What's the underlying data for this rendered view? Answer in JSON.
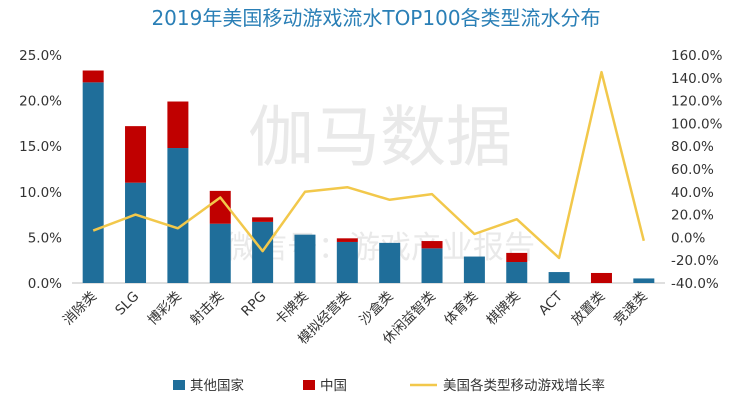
{
  "chart_data": {
    "type": "bar",
    "title": "2019年美国移动游戏流水TOP100各类型流水分布",
    "stacked": true,
    "categories": [
      "消除类",
      "SLG",
      "博彩类",
      "射击类",
      "RPG",
      "卡牌类",
      "模拟经营类",
      "沙盒类",
      "休闲益智类",
      "体育类",
      "棋牌类",
      "ACT",
      "放置类",
      "竞速类"
    ],
    "series": [
      {
        "name": "其他国家",
        "axis": "left",
        "color": "#1f6e9a",
        "values": [
          22.0,
          11.0,
          14.8,
          6.5,
          6.7,
          5.3,
          4.5,
          4.4,
          3.8,
          2.9,
          2.3,
          1.2,
          0.0,
          0.5
        ]
      },
      {
        "name": "中国",
        "axis": "left",
        "color": "#c00000",
        "values": [
          1.3,
          6.2,
          5.1,
          3.6,
          0.5,
          0.0,
          0.4,
          0.0,
          0.8,
          0.0,
          1.0,
          0.0,
          1.1,
          0.0
        ]
      },
      {
        "name": "美国各类型移动游戏增长率",
        "axis": "right",
        "type": "line",
        "color": "#f2c84b",
        "values": [
          6.0,
          20.0,
          8.0,
          35.0,
          -12.0,
          40.0,
          44.0,
          33.0,
          38.0,
          3.0,
          16.0,
          -18.0,
          145.0,
          -3.0
        ]
      }
    ],
    "y_left": {
      "ticks": [
        "0.0%",
        "5.0%",
        "10.0%",
        "15.0%",
        "20.0%",
        "25.0%"
      ],
      "ylim": [
        0,
        25
      ]
    },
    "y_right": {
      "ticks": [
        "-40.0%",
        "-20.0%",
        "0.0%",
        "20.0%",
        "40.0%",
        "60.0%",
        "80.0%",
        "100.0%",
        "120.0%",
        "140.0%",
        "160.0%"
      ],
      "ylim": [
        -40,
        160
      ]
    },
    "legend_position": "bottom",
    "watermark": [
      "伽马数据",
      "微信号：游戏产业报告"
    ]
  }
}
